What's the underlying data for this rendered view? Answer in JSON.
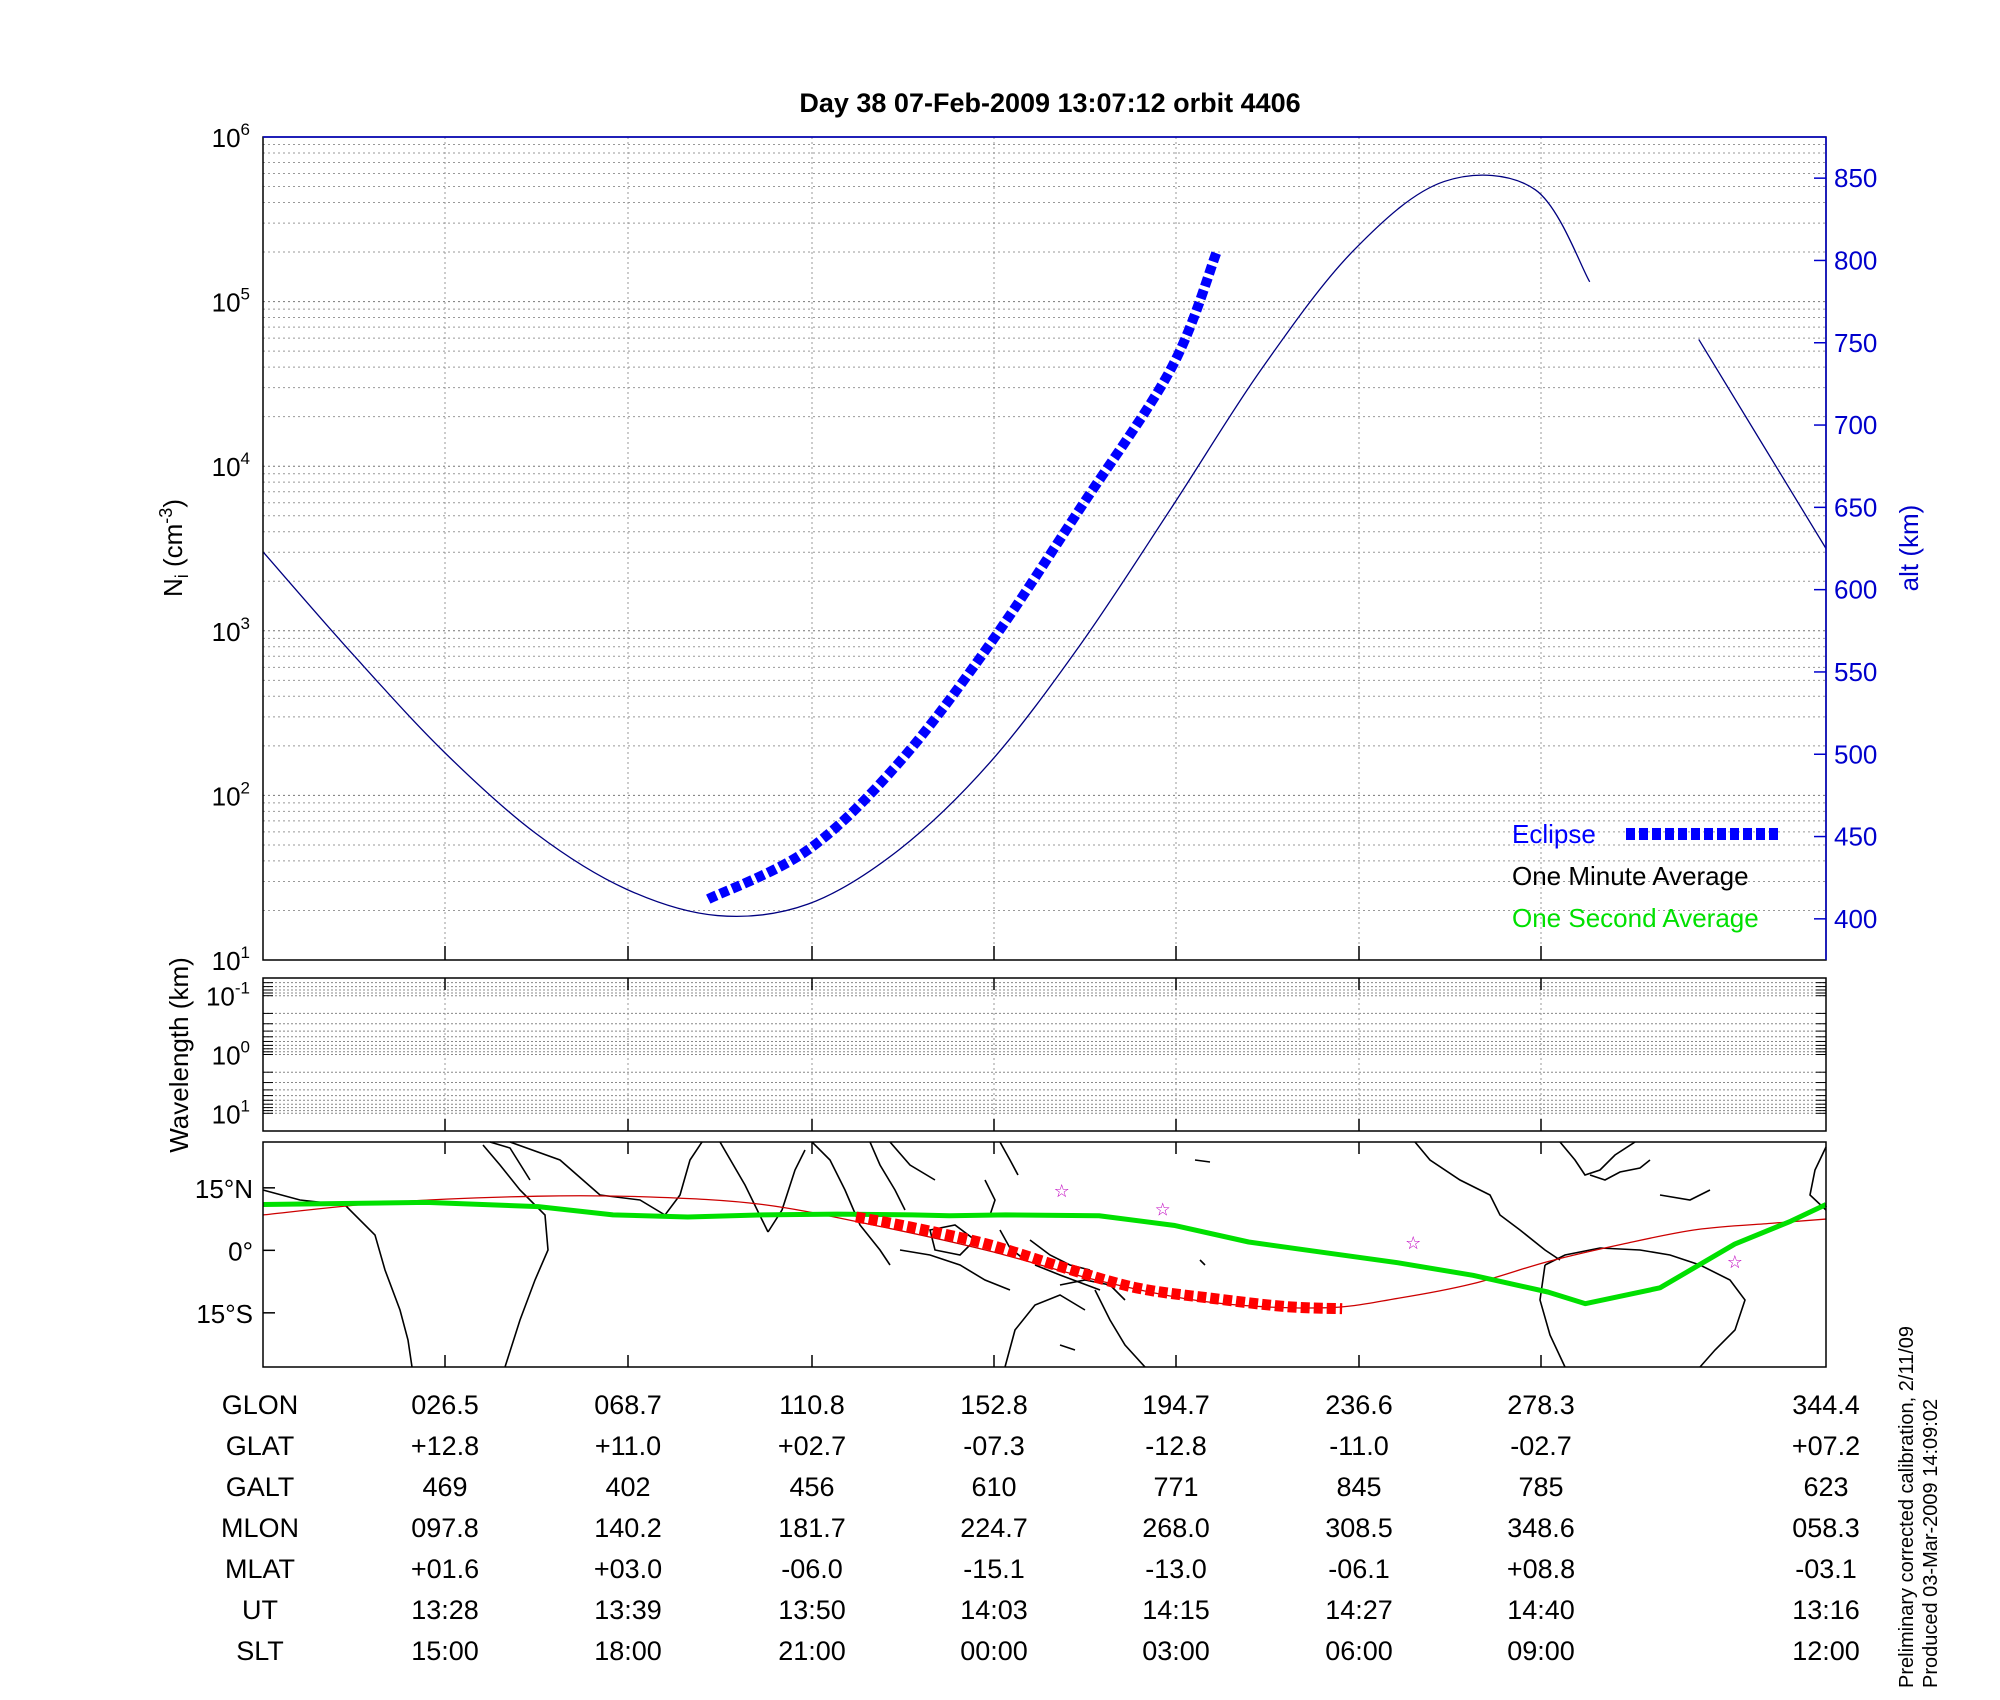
{
  "chart_data": [
    {
      "panel": "density",
      "type": "line",
      "title": "Day 38  07-Feb-2009 13:07:12   orbit 4406",
      "ylabel_left": "N_i (cm^-3)",
      "ylabel_right": "alt (km)",
      "y_left": {
        "scale": "log",
        "range": [
          10,
          1000000
        ],
        "tick_labels": [
          [
            "10",
            "1"
          ],
          [
            "10",
            "2"
          ],
          [
            "10",
            "3"
          ],
          [
            "10",
            "4"
          ],
          [
            "10",
            "5"
          ],
          [
            "10",
            "6"
          ]
        ]
      },
      "y_right": {
        "scale": "linear",
        "range": [
          375,
          875
        ],
        "ticks": [
          400,
          450,
          500,
          550,
          600,
          650,
          700,
          750,
          800,
          850
        ]
      },
      "x_range": [
        0,
        8.6
      ],
      "grid": true,
      "legend": {
        "placement": "bottom-right",
        "entries": [
          {
            "name": "Eclipse",
            "color": "#0000ff",
            "style": "thick-dash"
          },
          {
            "name": "One Minute Average",
            "color": "#000000",
            "style": "line"
          },
          {
            "name": "One Second Average",
            "color": "#00e000",
            "style": "line"
          }
        ]
      },
      "series": [
        {
          "name": "altitude",
          "axis": "right",
          "color": "#000080",
          "x": [
            0,
            0.5,
            1.0,
            1.5,
            2.0,
            2.5,
            3.0,
            3.5,
            4.0,
            4.5,
            5.0,
            5.5,
            6.0,
            6.5,
            7.0,
            7.3
          ],
          "y": [
            623,
            560,
            501,
            452,
            418,
            402,
            409,
            442,
            495,
            567,
            650,
            735,
            806,
            848,
            843,
            787
          ],
          "x2": [
            7.9,
            8.6
          ],
          "y2": [
            752,
            625
          ]
        },
        {
          "name": "Eclipse",
          "axis": "right",
          "color": "#0000ff",
          "x": [
            2.45,
            3.0,
            3.5,
            4.0,
            4.5,
            5.0,
            5.25
          ],
          "y": [
            412,
            442,
            495,
            567,
            650,
            735,
            806
          ]
        }
      ]
    },
    {
      "panel": "wavelength",
      "type": "heatmap",
      "ylabel": "Wavelength (km)",
      "y": {
        "scale": "log",
        "range": [
          0.05,
          20
        ],
        "tick_labels": [
          [
            "10",
            "-1"
          ],
          [
            "10",
            "0"
          ],
          [
            "10",
            "1"
          ]
        ]
      },
      "grid": true
    },
    {
      "panel": "map",
      "type": "line",
      "y_tick_labels": [
        "15°N",
        "0°",
        "15°S"
      ],
      "ylim": [
        -28,
        26
      ],
      "x_range_glon": [
        -73.6,
        344.4
      ],
      "series": [
        {
          "name": "One Second Average",
          "color": "#00e000",
          "lon": [
            -73.6,
            -30,
            0,
            20,
            40,
            60,
            80,
            100,
            110,
            125,
            150,
            170,
            190,
            210,
            230,
            250,
            270,
            280,
            300,
            320,
            335,
            344.4
          ],
          "lat": [
            11,
            11.5,
            10.5,
            8.5,
            8,
            8.5,
            8.7,
            8.5,
            8.3,
            8.5,
            8.3,
            6,
            2,
            -0.5,
            -3,
            -6,
            -10,
            -12.8,
            -9,
            1.5,
            7,
            11
          ]
        },
        {
          "name": "ground track",
          "color": "#cc0000",
          "lon": [
            -73.6,
            -40,
            0,
            30,
            60,
            90,
            120,
            150,
            180,
            210,
            230,
            250,
            270,
            290,
            310,
            330,
            344.4
          ],
          "lat": [
            8.5,
            11.5,
            13,
            12.8,
            11,
            6,
            0,
            -7.3,
            -12.5,
            -13.8,
            -11.5,
            -8,
            -2.7,
            1.5,
            5,
            6.5,
            7.5
          ]
        },
        {
          "name": "Eclipse",
          "color": "#ff0000",
          "lon": [
            85,
            100,
            120,
            140,
            160,
            180,
            200,
            215
          ],
          "lat": [
            8,
            5.5,
            1.5,
            -4,
            -9,
            -11.5,
            -13.5,
            -14
          ]
        }
      ],
      "stars_lon_lat": [
        [
          140,
          14.5
        ],
        [
          167,
          10
        ],
        [
          234,
          2
        ],
        [
          320,
          -2.5
        ]
      ]
    }
  ],
  "table": {
    "row_labels": [
      "GLON",
      "GLAT",
      "GALT",
      "MLON",
      "MLAT",
      "UT",
      "SLT"
    ],
    "columns": [
      [
        "026.5",
        "+12.8",
        "469",
        "097.8",
        "+01.6",
        "13:28",
        "15:00"
      ],
      [
        "068.7",
        "+11.0",
        "402",
        "140.2",
        "+03.0",
        "13:39",
        "18:00"
      ],
      [
        "110.8",
        "+02.7",
        "456",
        "181.7",
        "-06.0",
        "13:50",
        "21:00"
      ],
      [
        "152.8",
        "-07.3",
        "610",
        "224.7",
        "-15.1",
        "14:03",
        "00:00"
      ],
      [
        "194.7",
        "-12.8",
        "771",
        "268.0",
        "-13.0",
        "14:15",
        "03:00"
      ],
      [
        "236.6",
        "-11.0",
        "845",
        "308.5",
        "-06.1",
        "14:27",
        "06:00"
      ],
      [
        "278.3",
        "-02.7",
        "785",
        "348.6",
        "+08.8",
        "14:40",
        "09:00"
      ],
      [
        "344.4",
        "+07.2",
        "623",
        "058.3",
        "-03.1",
        "13:16",
        "12:00"
      ]
    ]
  },
  "footer": {
    "line1": "Preliminary corrected calibration, 2/11/09",
    "line2": "Produced 03-Mar-2009 14:09:02"
  }
}
